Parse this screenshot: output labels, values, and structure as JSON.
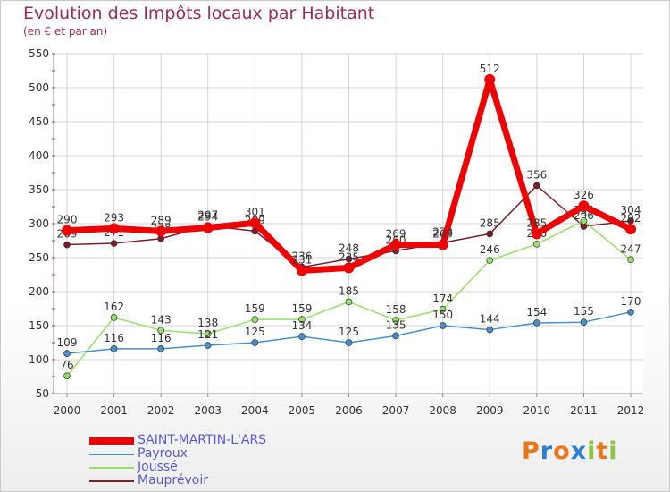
{
  "title": "Evolution des Impôts locaux par Habitant",
  "subtitle": "(en € et par an)",
  "logo": {
    "text": "Proxiti",
    "letters": [
      "P",
      "r",
      "o",
      "x",
      "i",
      "t",
      "i"
    ],
    "colors": [
      "#e8761a",
      "#2a7fd0",
      "#e8761a",
      "#2a7fd0",
      "#8cc63f",
      "#e8761a",
      "#8cc63f"
    ]
  },
  "chart_data": {
    "type": "line",
    "title": "Evolution des Impôts locaux par Habitant",
    "subtitle": "(en € et par an)",
    "xlabel": "",
    "ylabel": "",
    "ylim": [
      50,
      550
    ],
    "yticks": [
      50,
      100,
      150,
      200,
      250,
      300,
      350,
      400,
      450,
      500,
      550
    ],
    "grid": true,
    "legend": "bottom-left",
    "x": [
      "2000",
      "2001",
      "2002",
      "2003",
      "2004",
      "2005",
      "2006",
      "2007",
      "2008",
      "2009",
      "2010",
      "2011",
      "2012"
    ],
    "series": [
      {
        "name": "Mauprévoir",
        "color": "#7a1e2a",
        "values": [
          269,
          271,
          278,
          297,
          289,
          236,
          248,
          260,
          272,
          285,
          356,
          296,
          304
        ]
      },
      {
        "name": "Joussé",
        "color": "#97de6b",
        "values": [
          76,
          162,
          143,
          138,
          159,
          159,
          185,
          158,
          174,
          246,
          270,
          304,
          247
        ]
      },
      {
        "name": "Payroux",
        "color": "#4a8fc8",
        "values": [
          109,
          116,
          116,
          121,
          125,
          134,
          125,
          135,
          150,
          144,
          154,
          155,
          170
        ]
      },
      {
        "name": "SAINT-MARTIN-L'ARS",
        "color": "#ee0000",
        "values": [
          290,
          293,
          289,
          294,
          301,
          231,
          235,
          269,
          269,
          512,
          285,
          326,
          292
        ]
      }
    ]
  }
}
